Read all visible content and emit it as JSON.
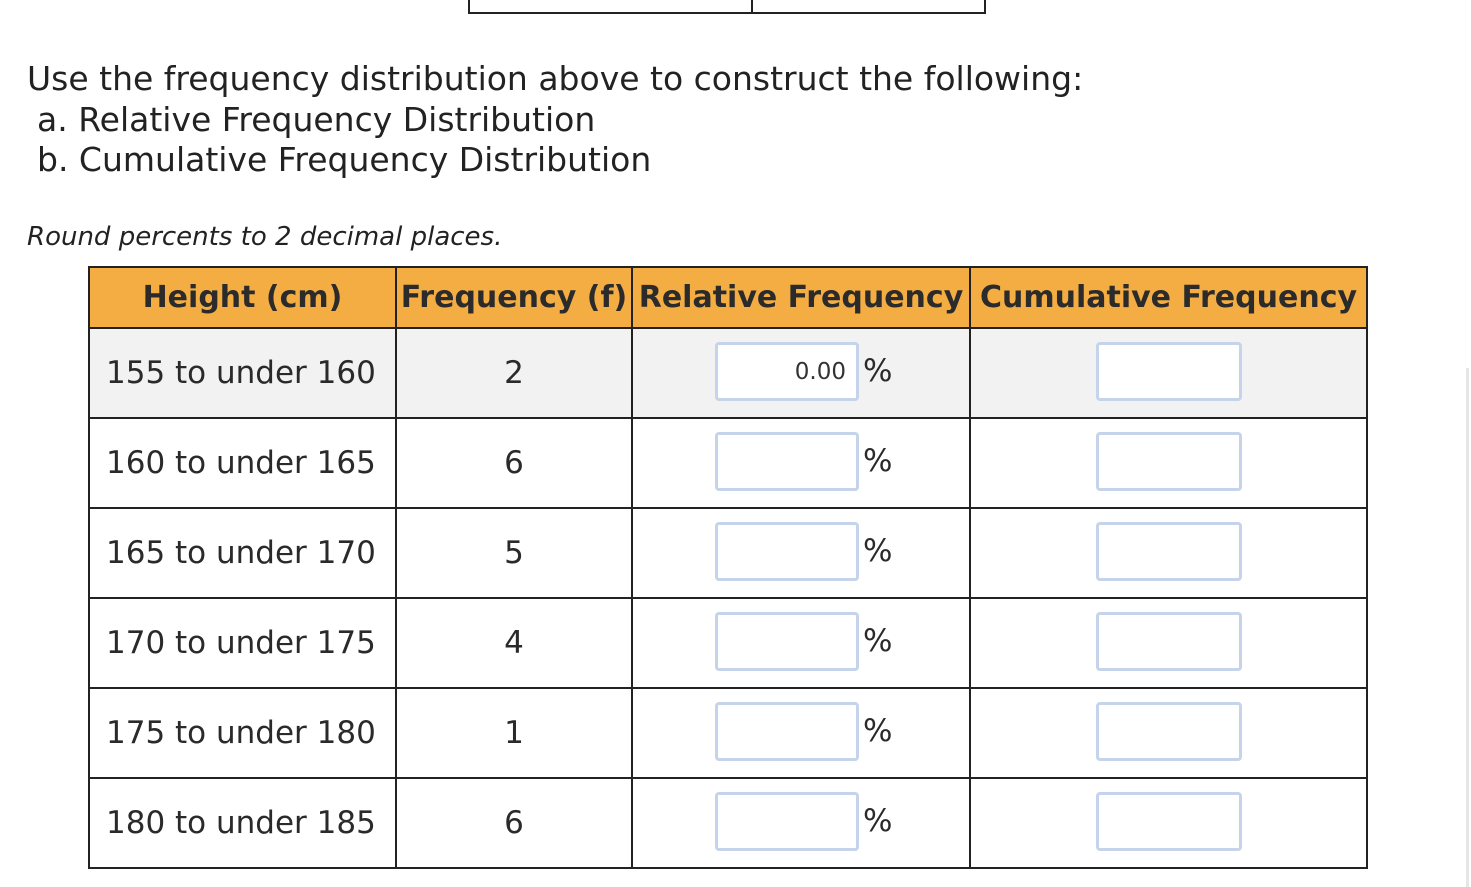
{
  "instructions": {
    "line1": "Use the frequency distribution above to construct the following:",
    "line2": "a. Relative Frequency Distribution",
    "line3": "b. Cumulative Frequency Distribution"
  },
  "round_note": "Round percents to 2 decimal places.",
  "table": {
    "headers": {
      "height": "Height (cm)",
      "frequency": "Frequency (f)",
      "relative": "Relative Frequency",
      "cumulative": "Cumulative Frequency"
    },
    "percent_symbol": "%",
    "header_color": "#f4ad42",
    "rows": [
      {
        "height": "155 to under 160",
        "frequency": "2",
        "relative_value": "0.00",
        "cumulative_value": ""
      },
      {
        "height": "160 to under 165",
        "frequency": "6",
        "relative_value": "",
        "cumulative_value": ""
      },
      {
        "height": "165 to under 170",
        "frequency": "5",
        "relative_value": "",
        "cumulative_value": ""
      },
      {
        "height": "170 to under 175",
        "frequency": "4",
        "relative_value": "",
        "cumulative_value": ""
      },
      {
        "height": "175 to under 180",
        "frequency": "1",
        "relative_value": "",
        "cumulative_value": ""
      },
      {
        "height": "180 to under 185",
        "frequency": "6",
        "relative_value": "",
        "cumulative_value": ""
      }
    ]
  }
}
